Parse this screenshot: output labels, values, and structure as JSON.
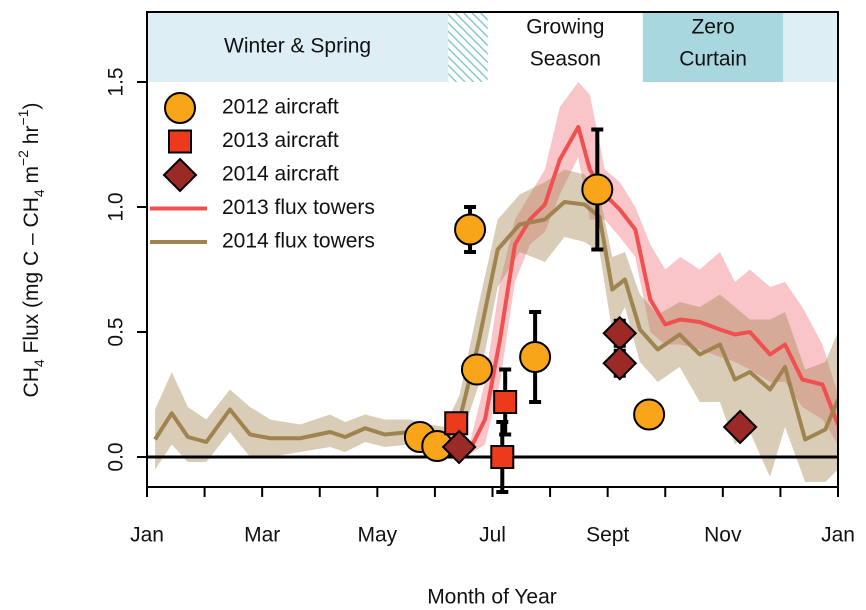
{
  "chart_data": {
    "type": "line",
    "xlabel": "Month of Year",
    "ylabel_parts": [
      {
        "text": "CH"
      },
      {
        "text": "4",
        "shift": "sub"
      },
      {
        "text": " Flux (mg C – CH"
      },
      {
        "text": "4",
        "shift": "sub"
      },
      {
        "text": " m"
      },
      {
        "text": "−2",
        "shift": "sup"
      },
      {
        "text": " hr"
      },
      {
        "text": "−1",
        "shift": "sup"
      },
      {
        "text": ")"
      }
    ],
    "xlim": [
      1,
      13
    ],
    "ylim": [
      -0.12,
      1.78
    ],
    "xticks": [
      {
        "value": 1,
        "label": "Jan"
      },
      {
        "value": 3,
        "label": "Mar"
      },
      {
        "value": 5,
        "label": "May"
      },
      {
        "value": 7,
        "label": "Jul"
      },
      {
        "value": 9,
        "label": "Sept"
      },
      {
        "value": 11,
        "label": "Nov"
      },
      {
        "value": 13,
        "label": "Jan"
      }
    ],
    "xminor_ticks": [
      2,
      4,
      6,
      8,
      10,
      12
    ],
    "yticks": [
      {
        "value": 0,
        "label": "0.0"
      },
      {
        "value": 0.5,
        "label": "0.5"
      },
      {
        "value": 1,
        "label": "1.0"
      },
      {
        "value": 1.5,
        "label": "1.5"
      }
    ],
    "zero_line": true,
    "season_band_ylim": [
      1.5,
      1.78
    ],
    "seasons": [
      {
        "label": [
          "Winter & Spring"
        ],
        "start": 1,
        "end": 6.23,
        "color": "#ddeff5"
      },
      {
        "label": null,
        "start": 6.23,
        "end": 6.92,
        "color": "#8cc8d6",
        "pattern": "hatch"
      },
      {
        "label": [
          "Growing",
          "Season"
        ],
        "start": 6.92,
        "end": 9.61,
        "color": "#ffffff"
      },
      {
        "label": [
          "Zero",
          "Curtain"
        ],
        "start": 9.61,
        "end": 12.05,
        "color": "#a9d7e0"
      },
      {
        "label": null,
        "start": 12.05,
        "end": 13,
        "color": "#ddeff5"
      }
    ],
    "legend": "upper left",
    "series": [
      {
        "name": "2012 aircraft",
        "style": "point",
        "marker": "circle",
        "color": "#f9a51a",
        "x": [
          5.74,
          6.04,
          6.61,
          6.73,
          7.74,
          8.82,
          9.72
        ],
        "values": [
          0.08,
          0.044,
          0.91,
          0.35,
          0.4,
          1.07,
          0.17
        ],
        "errors": [
          0.02,
          0.02,
          0.09,
          0.05,
          0.18,
          0.24,
          0.02
        ]
      },
      {
        "name": "2013 aircraft",
        "style": "point",
        "marker": "square",
        "color": "#ee3a1c",
        "x": [
          6.37,
          7.22,
          7.17
        ],
        "values": [
          0.135,
          0.22,
          0.0
        ],
        "errors": [
          0.03,
          0.13,
          0.14
        ]
      },
      {
        "name": "2014 aircraft",
        "style": "point",
        "marker": "diamond",
        "color": "#9b2a26",
        "x": [
          6.42,
          9.21,
          9.21,
          11.3
        ],
        "values": [
          0.04,
          0.495,
          0.375,
          0.12
        ],
        "errors": [
          0.02,
          0.05,
          0.05,
          0.02
        ]
      },
      {
        "name": "2013 flux towers",
        "style": "line",
        "color": "#f0504f",
        "band_color": "rgba(240,110,120,0.4)",
        "x": [
          6.35,
          6.61,
          6.87,
          7.13,
          7.39,
          7.65,
          7.91,
          8.17,
          8.49,
          8.69,
          8.95,
          9.21,
          9.48,
          9.74,
          10.0,
          10.26,
          10.6,
          10.95,
          11.21,
          11.47,
          11.82,
          12.08,
          12.38,
          12.73,
          13.0
        ],
        "values": [
          0.01,
          0.03,
          0.15,
          0.47,
          0.85,
          0.95,
          1.01,
          1.19,
          1.32,
          1.15,
          1.05,
          0.99,
          0.91,
          0.63,
          0.53,
          0.55,
          0.54,
          0.51,
          0.49,
          0.5,
          0.41,
          0.45,
          0.31,
          0.29,
          0.13
        ],
        "upper": [
          0.03,
          0.06,
          0.3,
          0.7,
          0.95,
          1.05,
          1.15,
          1.4,
          1.5,
          1.45,
          1.15,
          1.1,
          1.0,
          0.85,
          0.75,
          0.8,
          0.75,
          0.82,
          0.7,
          0.75,
          0.68,
          0.7,
          0.6,
          0.45,
          0.25
        ],
        "lower": [
          0.0,
          0.01,
          0.05,
          0.3,
          0.7,
          0.85,
          0.9,
          1.05,
          1.2,
          0.95,
          0.95,
          0.88,
          0.8,
          0.5,
          0.45,
          0.45,
          0.43,
          0.4,
          0.38,
          0.35,
          0.3,
          0.3,
          0.2,
          0.15,
          0.05
        ]
      },
      {
        "name": "2014 flux towers",
        "style": "line",
        "color": "#a0844f",
        "band_color": "rgba(165,135,85,0.42)",
        "x": [
          1.14,
          1.43,
          1.71,
          2.03,
          2.44,
          2.79,
          3.14,
          3.66,
          4.18,
          4.44,
          4.79,
          5.13,
          5.57,
          5.91,
          6.17,
          6.43,
          6.75,
          7.09,
          7.47,
          7.91,
          8.25,
          8.6,
          8.86,
          9.08,
          9.3,
          9.56,
          9.87,
          10.25,
          10.6,
          10.95,
          11.21,
          11.47,
          11.82,
          12.08,
          12.43,
          12.78,
          13.0
        ],
        "values": [
          0.07,
          0.175,
          0.08,
          0.06,
          0.19,
          0.09,
          0.075,
          0.075,
          0.1,
          0.08,
          0.115,
          0.09,
          0.1,
          0.07,
          0.065,
          0.15,
          0.45,
          0.83,
          0.93,
          0.95,
          1.02,
          1.01,
          0.96,
          0.67,
          0.71,
          0.51,
          0.43,
          0.49,
          0.41,
          0.45,
          0.31,
          0.34,
          0.27,
          0.36,
          0.07,
          0.11,
          0.23
        ],
        "upper": [
          0.19,
          0.34,
          0.2,
          0.15,
          0.27,
          0.2,
          0.15,
          0.13,
          0.17,
          0.14,
          0.17,
          0.15,
          0.15,
          0.13,
          0.12,
          0.25,
          0.6,
          0.95,
          1.05,
          1.1,
          1.15,
          1.13,
          1.05,
          0.8,
          0.82,
          0.65,
          0.57,
          0.62,
          0.6,
          0.65,
          0.6,
          0.55,
          0.55,
          0.58,
          0.35,
          0.38,
          0.5
        ],
        "lower": [
          -0.05,
          0.05,
          -0.02,
          -0.02,
          0.1,
          0.0,
          0.0,
          0.02,
          0.04,
          0.02,
          0.06,
          0.04,
          0.05,
          0.02,
          0.02,
          0.06,
          0.28,
          0.68,
          0.82,
          0.78,
          0.88,
          0.86,
          0.82,
          0.5,
          0.6,
          0.38,
          0.3,
          0.36,
          0.22,
          0.22,
          0.05,
          0.1,
          -0.08,
          0.12,
          -0.1,
          -0.1,
          -0.05
        ]
      }
    ]
  }
}
